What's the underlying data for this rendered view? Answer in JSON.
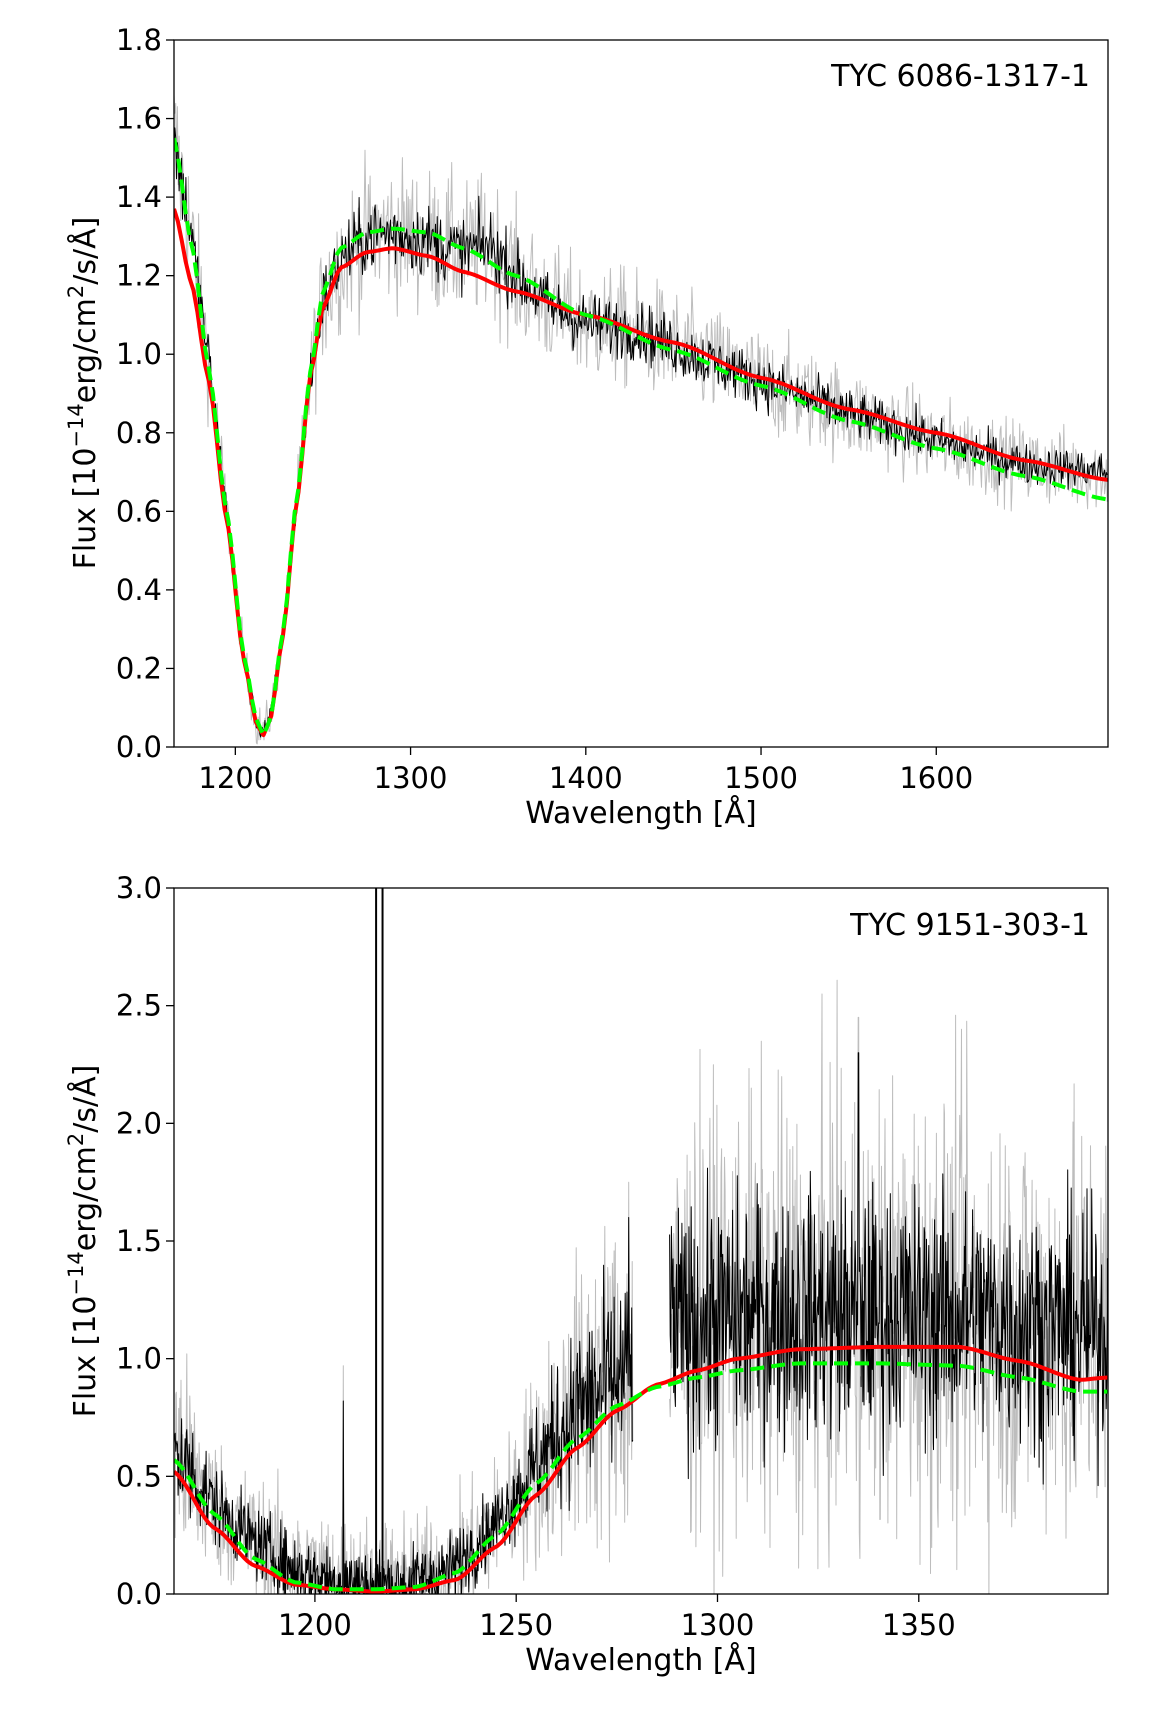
{
  "chart_data": [
    {
      "type": "line",
      "title": "TYC 6086-1317-1",
      "xlabel": "Wavelength [Å]",
      "ylabel_parts": {
        "pre": "Flux [10",
        "exp1": "−14",
        "mid": "erg/cm",
        "exp2": "2",
        "post": "/s/Å]"
      },
      "xlim": [
        1165,
        1698
      ],
      "ylim": [
        0.0,
        1.8
      ],
      "xticks": [
        1200,
        1300,
        1400,
        1500,
        1600
      ],
      "xtick_labels": [
        "1200",
        "1300",
        "1400",
        "1500",
        "1600"
      ],
      "yticks": [
        0.0,
        0.2,
        0.4,
        0.6,
        0.8,
        1.0,
        1.2,
        1.4,
        1.6,
        1.8
      ],
      "ytick_labels": [
        "0.0",
        "0.2",
        "0.4",
        "0.6",
        "0.8",
        "1.0",
        "1.2",
        "1.4",
        "1.6",
        "1.8"
      ],
      "grid": false,
      "series": [
        {
          "name": "observed spectrum",
          "role": "noisy-data",
          "color": "#000000",
          "error_color": "#bdbdbd",
          "noise": 0.035,
          "error_noise": 0.07,
          "x": [
            1165,
            1175,
            1185,
            1195,
            1205,
            1212,
            1216,
            1220,
            1227,
            1235,
            1243,
            1250,
            1260,
            1275,
            1290,
            1310,
            1330,
            1345,
            1360,
            1380,
            1400,
            1430,
            1460,
            1500,
            1550,
            1600,
            1650,
            1698
          ],
          "y": [
            1.55,
            1.3,
            0.98,
            0.6,
            0.22,
            0.06,
            0.04,
            0.08,
            0.28,
            0.62,
            0.95,
            1.14,
            1.24,
            1.3,
            1.31,
            1.29,
            1.26,
            1.28,
            1.2,
            1.12,
            1.08,
            1.06,
            1.0,
            0.93,
            0.85,
            0.78,
            0.72,
            0.7
          ]
        },
        {
          "name": "model fit (red)",
          "role": "line",
          "color": "#ff0000",
          "dashed": false,
          "x": [
            1165,
            1175,
            1185,
            1195,
            1205,
            1212,
            1216,
            1220,
            1227,
            1235,
            1243,
            1250,
            1260,
            1275,
            1290,
            1310,
            1330,
            1360,
            1400,
            1450,
            1500,
            1550,
            1600,
            1650,
            1698
          ],
          "y": [
            1.37,
            1.18,
            0.93,
            0.58,
            0.22,
            0.06,
            0.03,
            0.07,
            0.28,
            0.62,
            0.95,
            1.12,
            1.22,
            1.26,
            1.27,
            1.25,
            1.21,
            1.16,
            1.1,
            1.03,
            0.94,
            0.86,
            0.8,
            0.73,
            0.68
          ]
        },
        {
          "name": "model fit (green dashed)",
          "role": "line",
          "color": "#00ff00",
          "dashed": true,
          "x": [
            1165,
            1175,
            1185,
            1195,
            1205,
            1212,
            1216,
            1220,
            1227,
            1235,
            1243,
            1250,
            1260,
            1275,
            1290,
            1310,
            1330,
            1360,
            1400,
            1450,
            1500,
            1550,
            1600,
            1650,
            1698
          ],
          "y": [
            1.55,
            1.28,
            0.96,
            0.6,
            0.23,
            0.07,
            0.03,
            0.07,
            0.29,
            0.63,
            0.96,
            1.16,
            1.27,
            1.31,
            1.32,
            1.31,
            1.27,
            1.2,
            1.1,
            1.01,
            0.92,
            0.83,
            0.76,
            0.69,
            0.63
          ]
        }
      ]
    },
    {
      "type": "line",
      "title": "TYC 9151-303-1",
      "xlabel": "Wavelength [Å]",
      "ylabel_parts": {
        "pre": "Flux [10",
        "exp1": "−14",
        "mid": "erg/cm",
        "exp2": "2",
        "post": "/s/Å]"
      },
      "xlim": [
        1165,
        1397
      ],
      "ylim": [
        0.0,
        3.0
      ],
      "xticks": [
        1200,
        1250,
        1300,
        1350
      ],
      "xtick_labels": [
        "1200",
        "1250",
        "1300",
        "1350"
      ],
      "yticks": [
        0.0,
        0.5,
        1.0,
        1.5,
        2.0,
        2.5,
        3.0
      ],
      "ytick_labels": [
        "0.0",
        "0.5",
        "1.0",
        "1.5",
        "2.0",
        "2.5",
        "3.0"
      ],
      "grid": false,
      "gaps": [
        [
          1279,
          1288
        ]
      ],
      "vertical_lines": [
        1215.2,
        1216.8
      ],
      "series": [
        {
          "name": "observed spectrum",
          "role": "noisy-data",
          "color": "#000000",
          "error_color": "#bdbdbd",
          "noise": 0.22,
          "error_noise": 0.4,
          "spikes": [
            [
              1207,
              0.82
            ],
            [
              1278,
              1.6
            ],
            [
              1288,
              2.45
            ],
            [
              1335,
              2.3
            ]
          ],
          "x": [
            1165,
            1175,
            1185,
            1195,
            1205,
            1215,
            1225,
            1235,
            1245,
            1255,
            1265,
            1275,
            1279,
            1288,
            1295,
            1310,
            1330,
            1350,
            1365,
            1380,
            1390,
            1397
          ],
          "y": [
            0.62,
            0.38,
            0.22,
            0.1,
            0.06,
            0.04,
            0.05,
            0.12,
            0.3,
            0.55,
            0.78,
            0.92,
            0.95,
            1.12,
            1.16,
            1.18,
            1.19,
            1.19,
            1.18,
            1.14,
            1.12,
            1.12
          ]
        },
        {
          "name": "model fit (red)",
          "role": "line",
          "color": "#ff0000",
          "dashed": false,
          "x": [
            1165,
            1175,
            1185,
            1195,
            1205,
            1215,
            1225,
            1235,
            1245,
            1255,
            1265,
            1275,
            1285,
            1295,
            1305,
            1320,
            1340,
            1360,
            1375,
            1390,
            1397
          ],
          "y": [
            0.52,
            0.28,
            0.12,
            0.04,
            0.02,
            0.01,
            0.02,
            0.06,
            0.2,
            0.42,
            0.62,
            0.78,
            0.89,
            0.95,
            1.0,
            1.04,
            1.05,
            1.05,
            0.99,
            0.91,
            0.92
          ]
        },
        {
          "name": "model fit (green dashed)",
          "role": "line",
          "color": "#00ff00",
          "dashed": true,
          "x": [
            1165,
            1175,
            1185,
            1195,
            1205,
            1215,
            1225,
            1235,
            1245,
            1255,
            1265,
            1275,
            1285,
            1295,
            1305,
            1320,
            1340,
            1360,
            1375,
            1390,
            1397
          ],
          "y": [
            0.57,
            0.34,
            0.15,
            0.05,
            0.02,
            0.02,
            0.03,
            0.09,
            0.25,
            0.47,
            0.66,
            0.8,
            0.88,
            0.92,
            0.95,
            0.98,
            0.98,
            0.97,
            0.92,
            0.86,
            0.86
          ]
        }
      ]
    }
  ]
}
